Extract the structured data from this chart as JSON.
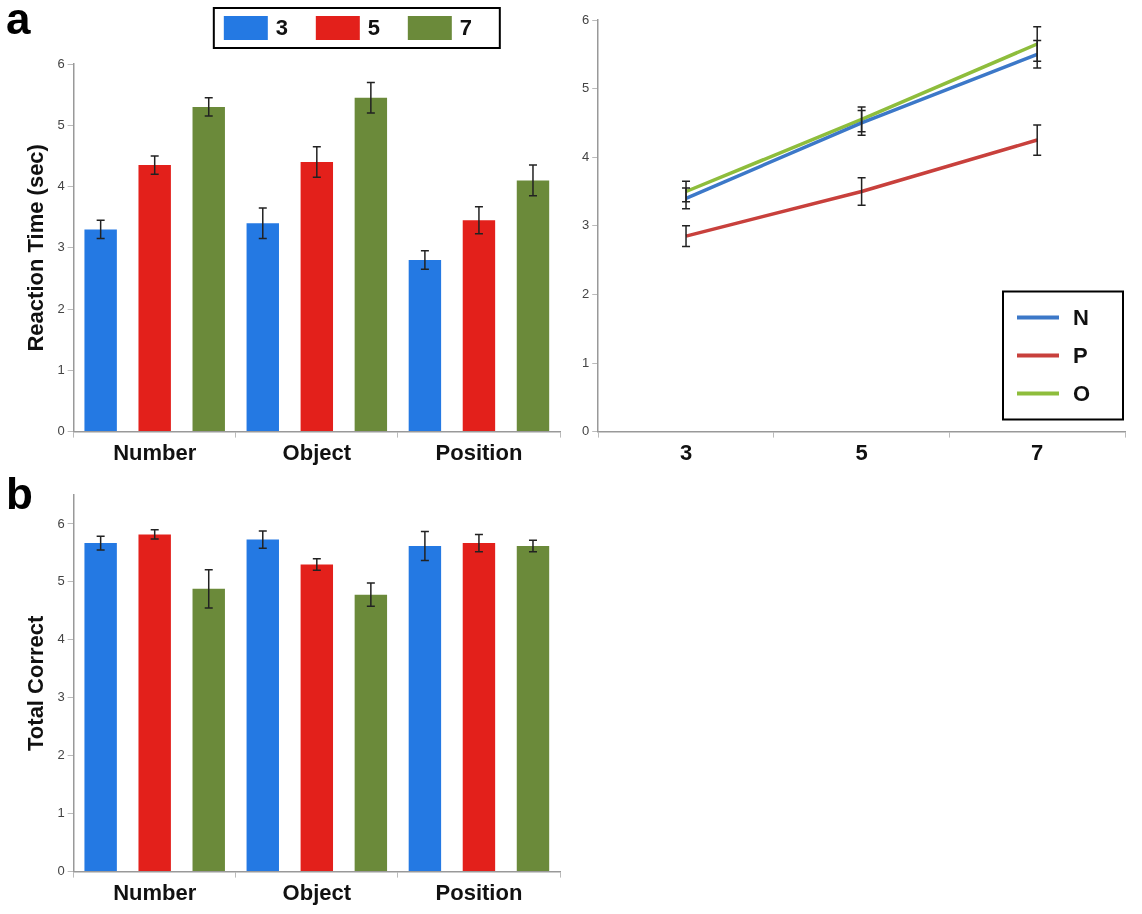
{
  "chart_data": [
    {
      "type": "bar",
      "ylabel": "Reaction Time (sec)",
      "categories": [
        "Number",
        "Object",
        "Position"
      ],
      "ylim": [
        0,
        6
      ],
      "yticks": [
        0,
        1,
        2,
        3,
        4,
        5,
        6
      ],
      "grid": false,
      "legend": "top",
      "annotations": [
        "a"
      ],
      "series": [
        {
          "name": "3",
          "color": "#2479e3",
          "values": [
            3.3,
            3.4,
            2.8
          ],
          "errors": [
            0.15,
            0.25,
            0.15
          ]
        },
        {
          "name": "5",
          "color": "#e3201b",
          "values": [
            4.35,
            4.4,
            3.45
          ],
          "errors": [
            0.15,
            0.25,
            0.22
          ]
        },
        {
          "name": "7",
          "color": "#6b8a3a",
          "values": [
            5.3,
            5.45,
            4.1
          ],
          "errors": [
            0.15,
            0.25,
            0.25
          ]
        }
      ]
    },
    {
      "type": "line",
      "categories": [
        "3",
        "5",
        "7"
      ],
      "ylim": [
        0,
        6
      ],
      "yticks": [
        0,
        1,
        2,
        3,
        4,
        5,
        6
      ],
      "grid": false,
      "legend": "bottom right",
      "marker": "none",
      "series": [
        {
          "name": "N",
          "color": "#3c78c8",
          "values": [
            3.4,
            4.5,
            5.5
          ],
          "errors": [
            0.15,
            0.18,
            0.2
          ]
        },
        {
          "name": "P",
          "color": "#c8403c",
          "values": [
            2.85,
            3.5,
            4.25
          ],
          "errors": [
            0.15,
            0.2,
            0.22
          ]
        },
        {
          "name": "O",
          "color": "#8ebd3c",
          "values": [
            3.5,
            4.55,
            5.65
          ],
          "errors": [
            0.15,
            0.18,
            0.25
          ]
        }
      ]
    },
    {
      "type": "bar",
      "ylabel": "Total Correct",
      "categories": [
        "Number",
        "Object",
        "Position"
      ],
      "ylim": [
        0,
        6.5
      ],
      "yticks": [
        0,
        1,
        2,
        3,
        4,
        5,
        6
      ],
      "grid": false,
      "legend": false,
      "annotations": [
        "b"
      ],
      "series": [
        {
          "color": "#2479e3",
          "values": [
            5.67,
            5.73,
            5.62
          ],
          "errors": [
            0.12,
            0.15,
            0.25
          ]
        },
        {
          "color": "#e3201b",
          "values": [
            5.82,
            5.3,
            5.67
          ],
          "errors": [
            0.08,
            0.1,
            0.15
          ]
        },
        {
          "color": "#6b8a3a",
          "values": [
            4.88,
            4.78,
            5.62
          ],
          "errors": [
            0.33,
            0.2,
            0.1
          ]
        }
      ]
    }
  ]
}
